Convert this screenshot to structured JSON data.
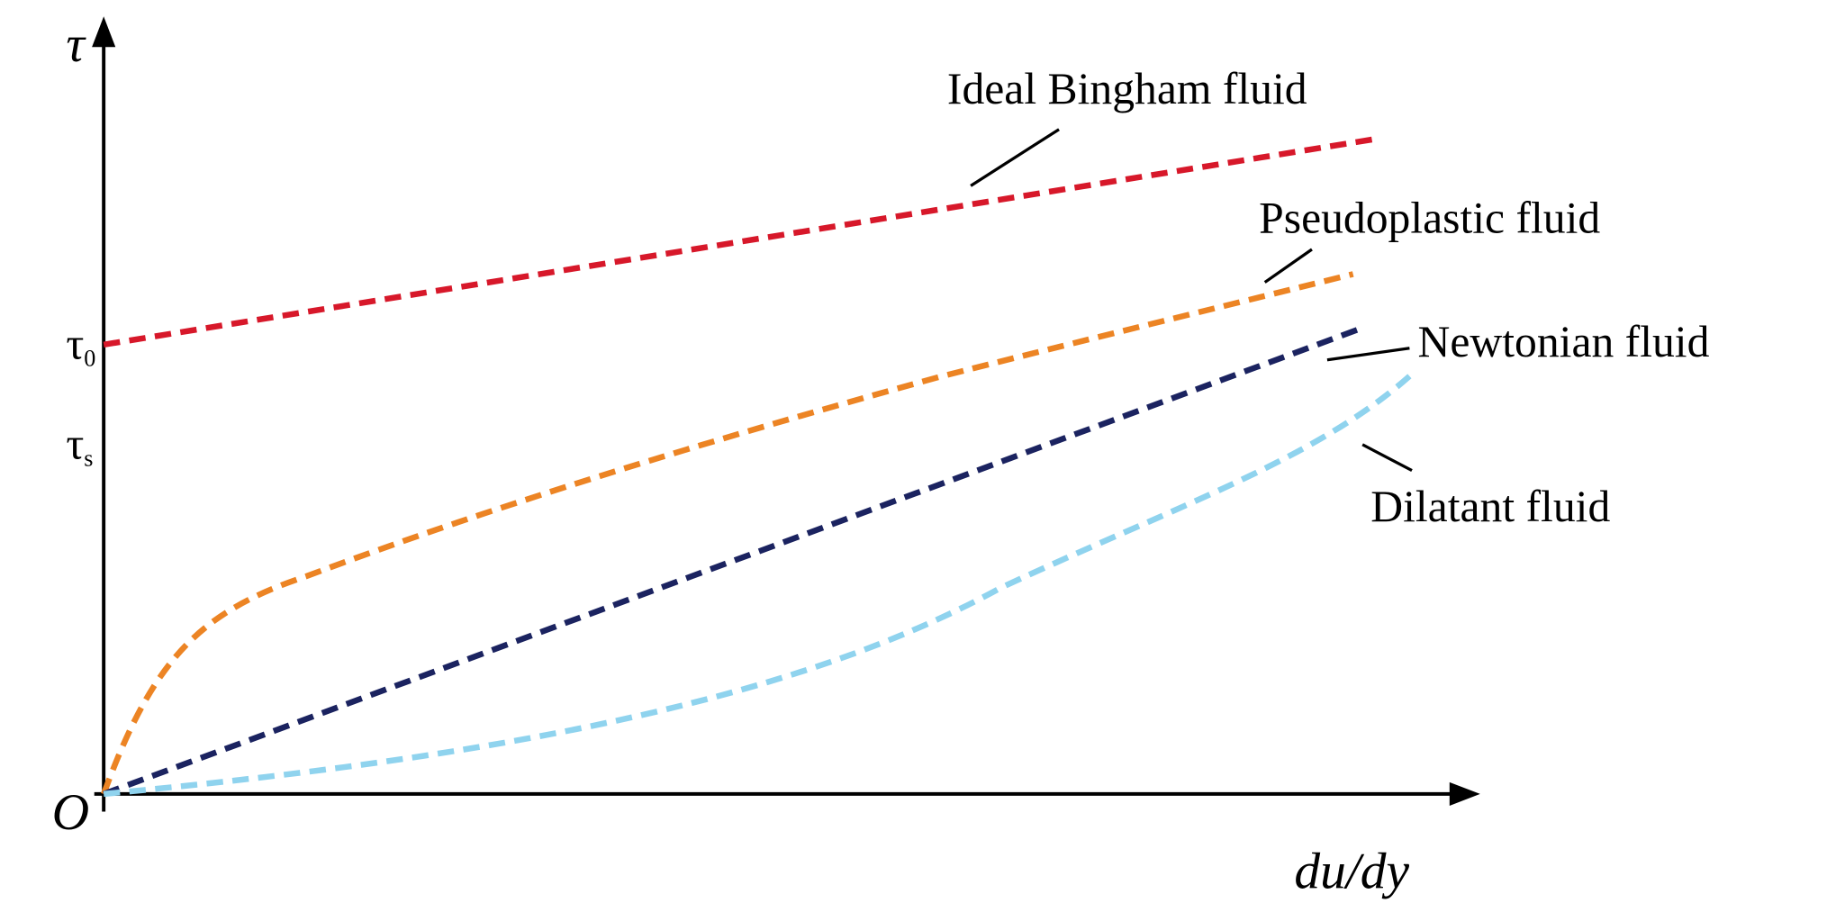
{
  "axes": {
    "y_label": "τ",
    "x_label": "du/dy",
    "origin": "O",
    "y_marks": [
      {
        "symbol": "τ",
        "subscript": "0"
      },
      {
        "symbol": "τ",
        "subscript": "s"
      }
    ]
  },
  "curves": [
    {
      "label": "Ideal Bingham fluid"
    },
    {
      "label": "Pseudoplastic fluid"
    },
    {
      "label": "Newtonian fluid"
    },
    {
      "label": "Dilatant fluid"
    }
  ]
}
